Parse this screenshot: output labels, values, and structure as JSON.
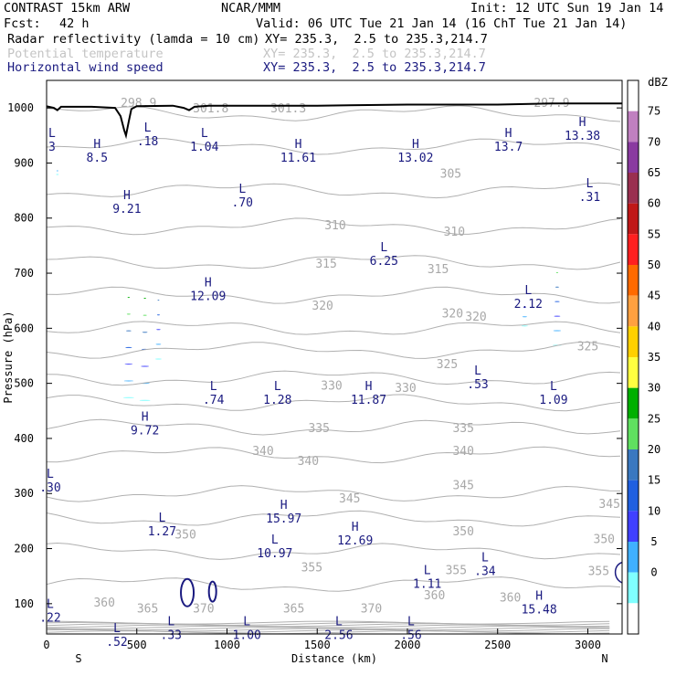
{
  "header": {
    "model": "CONTRAST 15km ARW",
    "center": "NCAR/MMM",
    "init": "Init: 12 UTC Sun 19 Jan 14",
    "fcst_label": "Fcst:",
    "fcst_value": "42 h",
    "valid": "Valid: 06 UTC Tue 21 Jan 14 (16 ChT Tue 21 Jan 14)",
    "fields": [
      {
        "name": "Radar reflectivity (lamda = 10 cm)",
        "xy": "XY= 235.3,  2.5 to 235.3,214.7"
      },
      {
        "name": "Potential temperature",
        "xy": "XY= 235.3,  2.5 to 235.3,214.7"
      },
      {
        "name": "Horizontal wind speed",
        "xy": "XY= 235.3,  2.5 to 235.3,214.7"
      }
    ]
  },
  "colors": {
    "wind": "#1a1a80",
    "theta": "#b0b0b0",
    "terrain": "#000000"
  },
  "chart_data": {
    "type": "cross-section",
    "xlabel": "Distance (km)",
    "ylabel": "Pressure (hPa)",
    "xlim": [
      0,
      3190
    ],
    "ylim": [
      1050,
      45
    ],
    "x_ticks": [
      "0",
      "500",
      "1000",
      "1500",
      "2000",
      "2500",
      "3000"
    ],
    "y_ticks": [
      "100",
      "200",
      "300",
      "400",
      "500",
      "600",
      "700",
      "800",
      "900",
      "1000"
    ],
    "x_end_labels": {
      "left": "S",
      "right": "N"
    },
    "colorbar": {
      "unit": "dBZ",
      "levels": [
        "75",
        "70",
        "65",
        "60",
        "55",
        "50",
        "45",
        "40",
        "35",
        "30",
        "25",
        "20",
        "15",
        "10",
        "5",
        "0"
      ],
      "colors": [
        "#ffffff",
        "#c080c0",
        "#8a3aa0",
        "#9a3050",
        "#c01818",
        "#ff2020",
        "#ff6a00",
        "#ffa040",
        "#ffd000",
        "#ffff40",
        "#00b000",
        "#60e060",
        "#3a78c0",
        "#2060e0",
        "#4040ff",
        "#40b0ff",
        "#80ffff",
        "#ffffff"
      ]
    },
    "theta_levels": [
      {
        "label": "360",
        "x": 320,
        "p": 103
      },
      {
        "label": "365",
        "x": 560,
        "p": 92
      },
      {
        "label": "370",
        "x": 870,
        "p": 92
      },
      {
        "label": "365",
        "x": 1370,
        "p": 92
      },
      {
        "label": "370",
        "x": 1800,
        "p": 92
      },
      {
        "label": "360",
        "x": 2150,
        "p": 116
      },
      {
        "label": "360",
        "x": 2570,
        "p": 112
      },
      {
        "label": "355",
        "x": 3060,
        "p": 160
      },
      {
        "label": "355",
        "x": 1470,
        "p": 167
      },
      {
        "label": "355",
        "x": 2270,
        "p": 162
      },
      {
        "label": "350",
        "x": 770,
        "p": 227
      },
      {
        "label": "350",
        "x": 2310,
        "p": 232
      },
      {
        "label": "350",
        "x": 3090,
        "p": 218
      },
      {
        "label": "345",
        "x": 1680,
        "p": 292
      },
      {
        "label": "345",
        "x": 2310,
        "p": 316
      },
      {
        "label": "345",
        "x": 3120,
        "p": 282
      },
      {
        "label": "340",
        "x": 1450,
        "p": 360
      },
      {
        "label": "340",
        "x": 1200,
        "p": 378
      },
      {
        "label": "340",
        "x": 2310,
        "p": 378
      },
      {
        "label": "335",
        "x": 1510,
        "p": 420
      },
      {
        "label": "335",
        "x": 2310,
        "p": 420
      },
      {
        "label": "330",
        "x": 1580,
        "p": 497
      },
      {
        "label": "330",
        "x": 1990,
        "p": 493
      },
      {
        "label": "325",
        "x": 2220,
        "p": 536
      },
      {
        "label": "325",
        "x": 3000,
        "p": 568
      },
      {
        "label": "320",
        "x": 1530,
        "p": 642
      },
      {
        "label": "320",
        "x": 2250,
        "p": 628
      },
      {
        "label": "320",
        "x": 2380,
        "p": 622
      },
      {
        "label": "315",
        "x": 1550,
        "p": 718
      },
      {
        "label": "315",
        "x": 2170,
        "p": 708
      },
      {
        "label": "310",
        "x": 1600,
        "p": 788
      },
      {
        "label": "310",
        "x": 2260,
        "p": 776
      },
      {
        "label": "305",
        "x": 2240,
        "p": 882
      },
      {
        "label": "298.9",
        "x": 510,
        "p": 1010
      },
      {
        "label": "301.8",
        "x": 910,
        "p": 1000
      },
      {
        "label": "301.3",
        "x": 1340,
        "p": 1000
      },
      {
        "label": "297.9",
        "x": 2800,
        "p": 1010
      }
    ],
    "wind_extrema": [
      {
        "type": "L",
        "value": ".52",
        "x": 390,
        "p": 48
      },
      {
        "type": "L",
        "value": ".33",
        "x": 690,
        "p": 61
      },
      {
        "type": "L",
        "value": "1.00",
        "x": 1110,
        "p": 61
      },
      {
        "type": "L",
        "value": "2.56",
        "x": 1620,
        "p": 61
      },
      {
        "type": "L",
        "value": ".56",
        "x": 2020,
        "p": 61
      },
      {
        "type": "L",
        "value": ".22",
        "x": 20,
        "p": 92
      },
      {
        "type": "H",
        "value": "15.48",
        "x": 2730,
        "p": 107
      },
      {
        "type": "L",
        "value": "1.11",
        "x": 2110,
        "p": 154
      },
      {
        "type": "L",
        "value": ".34",
        "x": 2430,
        "p": 177
      },
      {
        "type": "L",
        "value": "10.97",
        "x": 1265,
        "p": 209
      },
      {
        "type": "H",
        "value": "12.69",
        "x": 1710,
        "p": 232
      },
      {
        "type": "L",
        "value": "1.27",
        "x": 640,
        "p": 249
      },
      {
        "type": "H",
        "value": "15.97",
        "x": 1315,
        "p": 272
      },
      {
        "type": "L",
        "value": ".30",
        "x": 20,
        "p": 329
      },
      {
        "type": "H",
        "value": "9.72",
        "x": 545,
        "p": 432
      },
      {
        "type": "L",
        "value": ".74",
        "x": 925,
        "p": 488
      },
      {
        "type": "L",
        "value": "1.28",
        "x": 1280,
        "p": 488
      },
      {
        "type": "H",
        "value": "11.87",
        "x": 1785,
        "p": 488
      },
      {
        "type": "L",
        "value": "1.09",
        "x": 2810,
        "p": 488
      },
      {
        "type": "L",
        "value": ".53",
        "x": 2390,
        "p": 516
      },
      {
        "type": "H",
        "value": "12.09",
        "x": 895,
        "p": 676
      },
      {
        "type": "L",
        "value": "2.12",
        "x": 2670,
        "p": 662
      },
      {
        "type": "L",
        "value": "6.25",
        "x": 1870,
        "p": 740
      },
      {
        "type": "H",
        "value": "9.21",
        "x": 445,
        "p": 834
      },
      {
        "type": "L",
        "value": ".70",
        "x": 1085,
        "p": 846
      },
      {
        "type": "L",
        "value": ".31",
        "x": 3010,
        "p": 856
      },
      {
        "type": "H",
        "value": "8.5",
        "x": 280,
        "p": 927
      },
      {
        "type": "H",
        "value": "11.61",
        "x": 1395,
        "p": 927
      },
      {
        "type": "H",
        "value": "13.02",
        "x": 2045,
        "p": 927
      },
      {
        "type": "H",
        "value": "13.7",
        "x": 2560,
        "p": 947
      },
      {
        "type": "L",
        "value": ".18",
        "x": 560,
        "p": 957
      },
      {
        "type": "L",
        "value": "1.04",
        "x": 875,
        "p": 947
      },
      {
        "type": "H",
        "value": "13.38",
        "x": 2970,
        "p": 967
      },
      {
        "type": "L",
        "value": "3",
        "x": 30,
        "p": 947
      }
    ],
    "reflectivity_cells": [
      {
        "x_center": 455,
        "p_top": 475,
        "p_bottom": 980,
        "width_km": 60,
        "max_dbz": 35
      },
      {
        "x_center": 545,
        "p_top": 470,
        "p_bottom": 985,
        "width_km": 60,
        "max_dbz": 35
      },
      {
        "x_center": 620,
        "p_top": 545,
        "p_bottom": 990,
        "width_km": 35,
        "max_dbz": 25
      },
      {
        "x_center": 2650,
        "p_top": 605,
        "p_bottom": 885,
        "width_km": 35,
        "max_dbz": 15
      },
      {
        "x_center": 2830,
        "p_top": 570,
        "p_bottom": 1010,
        "width_km": 50,
        "max_dbz": 30
      },
      {
        "x_center": 60,
        "p_top": 880,
        "p_bottom": 990,
        "width_km": 15,
        "max_dbz": 10
      }
    ],
    "terrain": [
      [
        0,
        1003
      ],
      [
        40,
        1000
      ],
      [
        60,
        996
      ],
      [
        80,
        1002
      ],
      [
        150,
        1002
      ],
      [
        250,
        1002
      ],
      [
        380,
        1000
      ],
      [
        410,
        985
      ],
      [
        430,
        960
      ],
      [
        440,
        950
      ],
      [
        455,
        975
      ],
      [
        470,
        998
      ],
      [
        500,
        1003
      ],
      [
        700,
        1004
      ],
      [
        760,
        1000
      ],
      [
        790,
        996
      ],
      [
        820,
        1002
      ],
      [
        900,
        1004
      ],
      [
        1500,
        1004
      ],
      [
        2000,
        1006
      ],
      [
        2500,
        1006
      ],
      [
        2800,
        1008
      ],
      [
        3000,
        1008
      ],
      [
        3190,
        1008
      ]
    ]
  }
}
